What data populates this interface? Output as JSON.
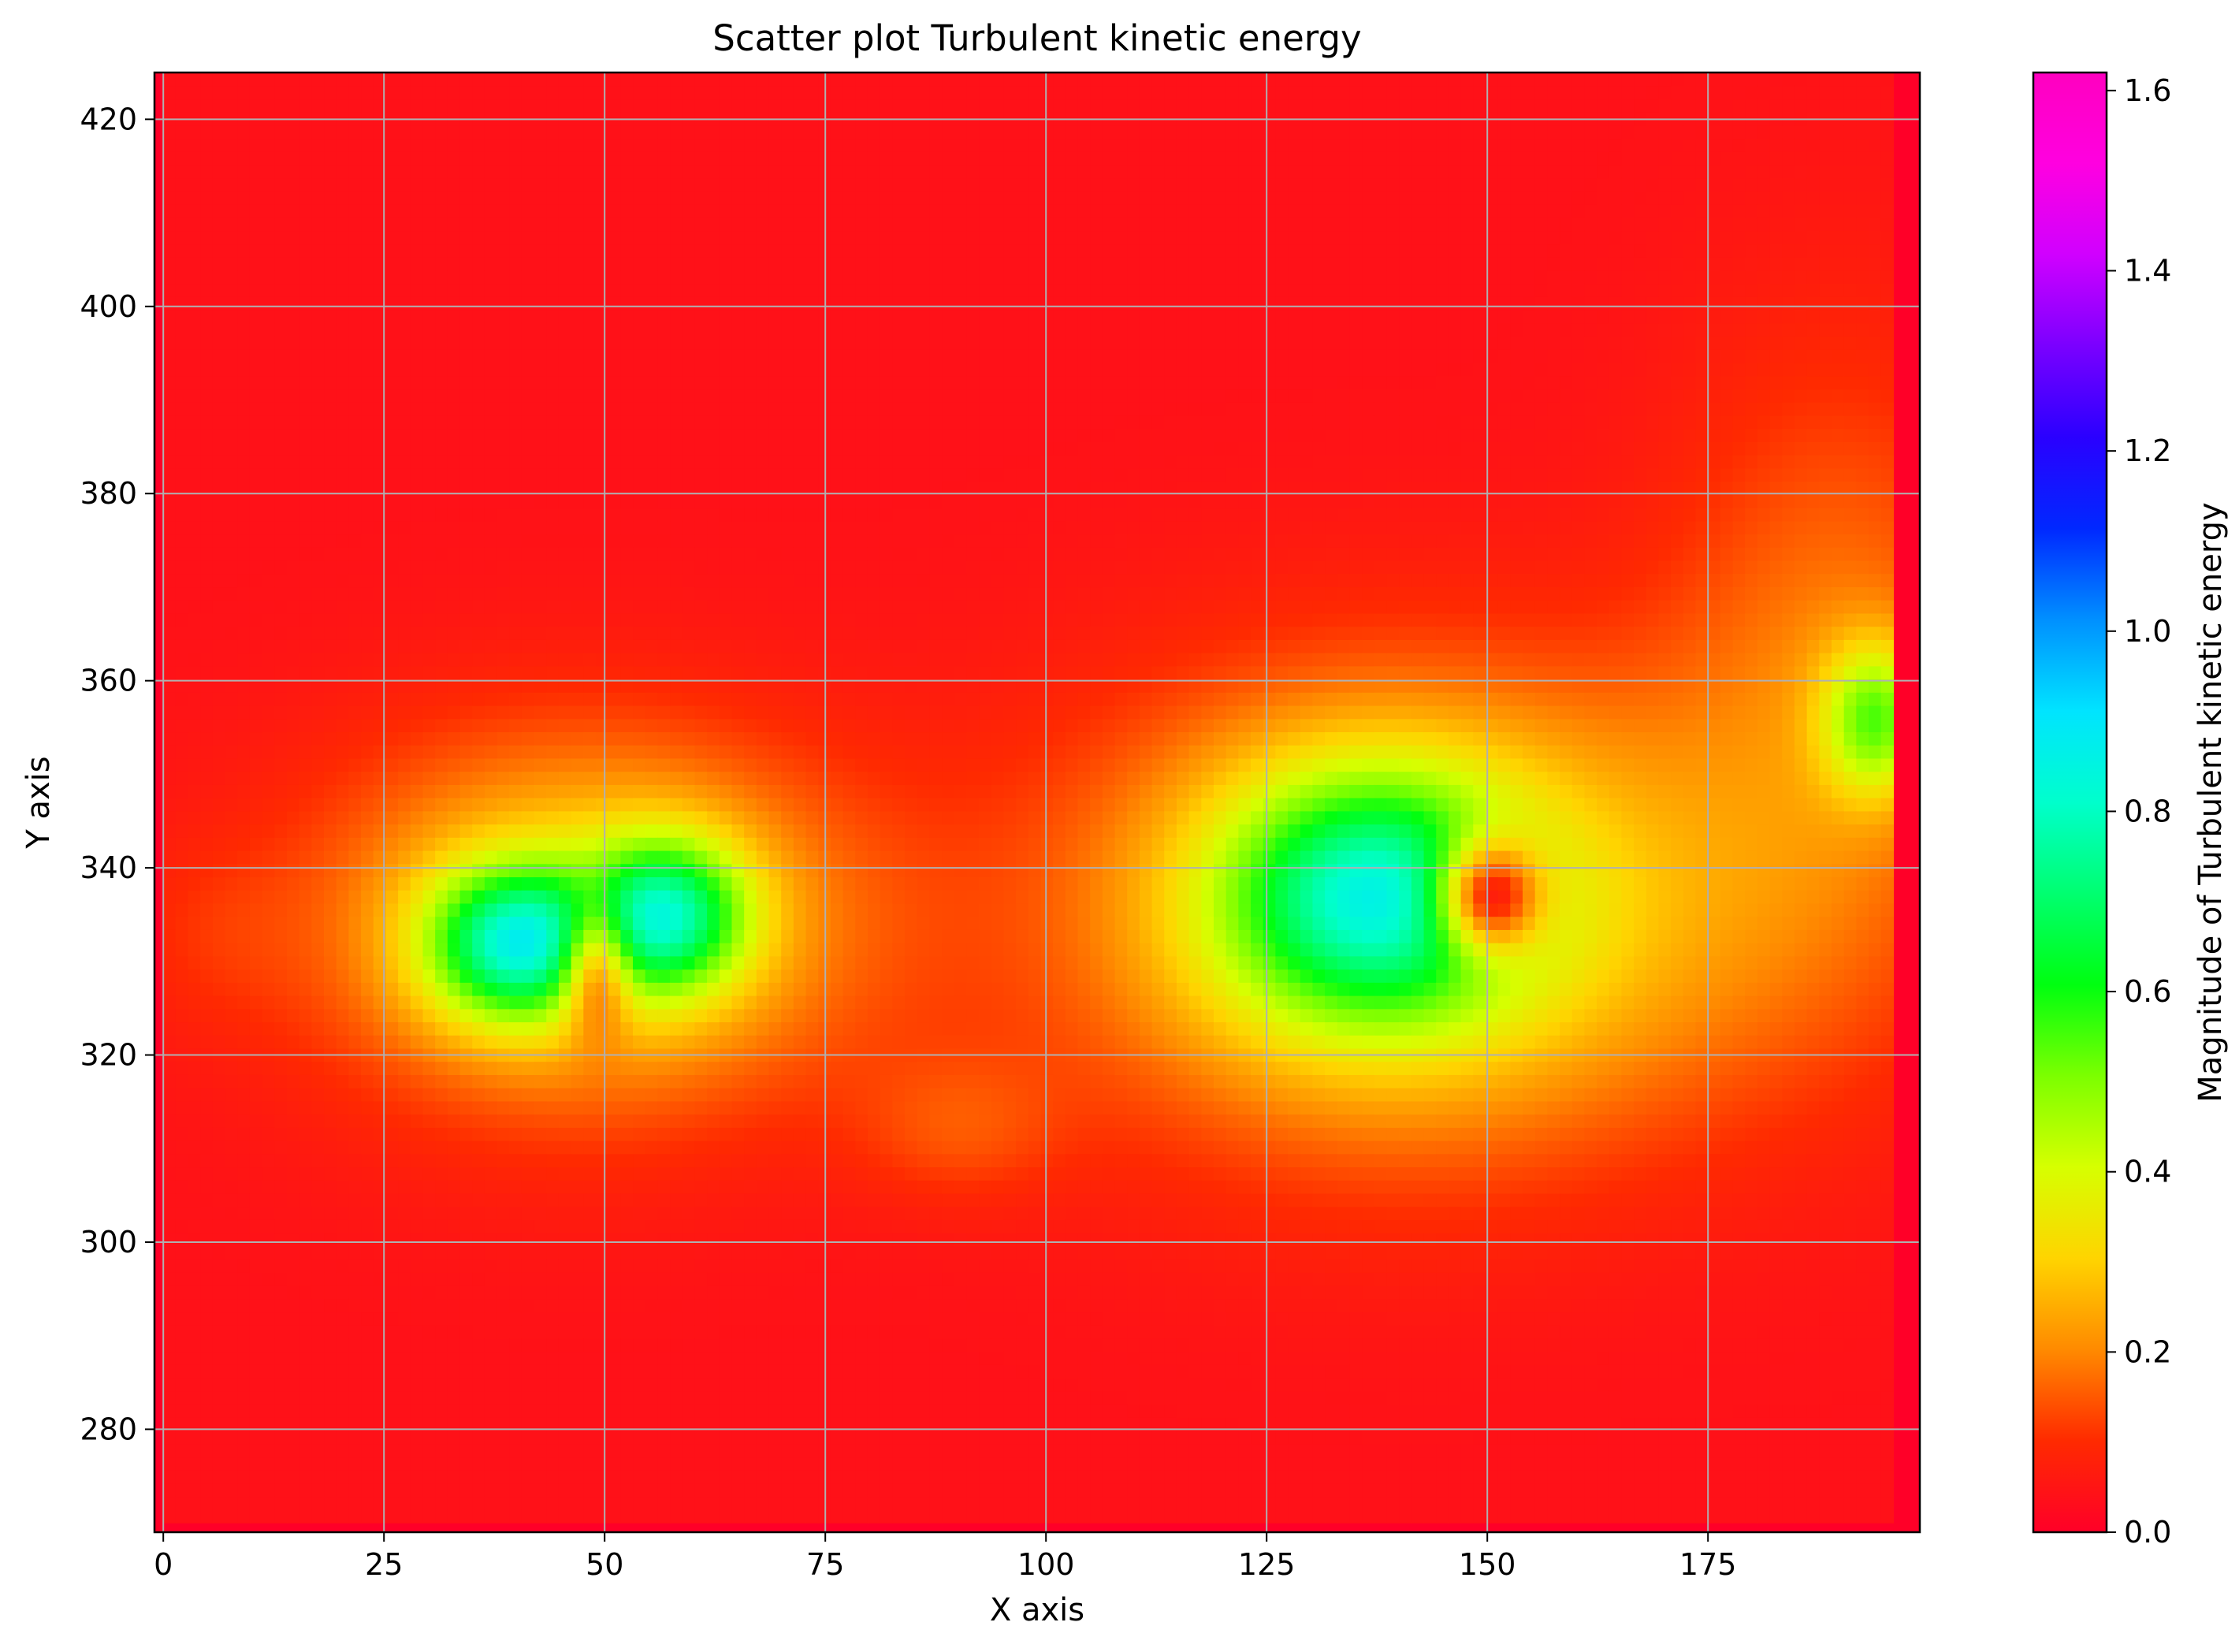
{
  "chart_data": {
    "type": "heatmap",
    "title": "Scatter plot Turbulent kinetic energy",
    "xlabel": "X axis",
    "ylabel": "Y axis",
    "colorbar_label": "Magnitude of Turbulent kinetic energy",
    "xlim": [
      -1,
      199
    ],
    "ylim": [
      269,
      425
    ],
    "x_ticks": [
      0,
      25,
      50,
      75,
      100,
      125,
      150,
      175
    ],
    "x_tick_labels": [
      "0",
      "25",
      "50",
      "75",
      "100",
      "125",
      "150",
      "175"
    ],
    "y_ticks": [
      280,
      300,
      320,
      340,
      360,
      380,
      400,
      420
    ],
    "y_tick_labels": [
      "280",
      "300",
      "320",
      "340",
      "360",
      "380",
      "400",
      "420"
    ],
    "colorbar_range": [
      0.0,
      1.62
    ],
    "colorbar_ticks": [
      0.0,
      0.2,
      0.4,
      0.6,
      0.8,
      1.0,
      1.2,
      1.4,
      1.6
    ],
    "colorbar_tick_labels": [
      "0.0",
      "0.2",
      "0.4",
      "0.6",
      "0.8",
      "1.0",
      "1.2",
      "1.4",
      "1.6"
    ],
    "colormap": "gist_rainbow_r",
    "grid": true,
    "data_extent": {
      "x": [
        0,
        196
      ],
      "y": [
        270,
        425
      ]
    },
    "background_value": 0.04,
    "features": [
      {
        "x": 40,
        "y": 332,
        "rx": 10,
        "ry": 8,
        "value": 0.55
      },
      {
        "x": 57,
        "y": 335,
        "rx": 9,
        "ry": 8,
        "value": 0.5
      },
      {
        "x": 48,
        "y": 334,
        "rx": 30,
        "ry": 20,
        "value": 0.3
      },
      {
        "x": 49,
        "y": 330,
        "rx": 4,
        "ry": 7,
        "value": -0.4
      },
      {
        "x": 137,
        "y": 337,
        "rx": 17,
        "ry": 13,
        "value": 0.5
      },
      {
        "x": 142,
        "y": 335,
        "rx": 38,
        "ry": 25,
        "value": 0.33
      },
      {
        "x": 150,
        "y": 337,
        "rx": 6,
        "ry": 6,
        "value": -0.55
      },
      {
        "x": 194,
        "y": 356,
        "rx": 6,
        "ry": 8,
        "value": 0.35
      },
      {
        "x": 190,
        "y": 360,
        "rx": 20,
        "ry": 35,
        "value": 0.14
      },
      {
        "x": 90,
        "y": 312,
        "rx": 12,
        "ry": 8,
        "value": 0.08
      },
      {
        "x": 5,
        "y": 333,
        "rx": 10,
        "ry": 10,
        "value": 0.04
      }
    ]
  }
}
